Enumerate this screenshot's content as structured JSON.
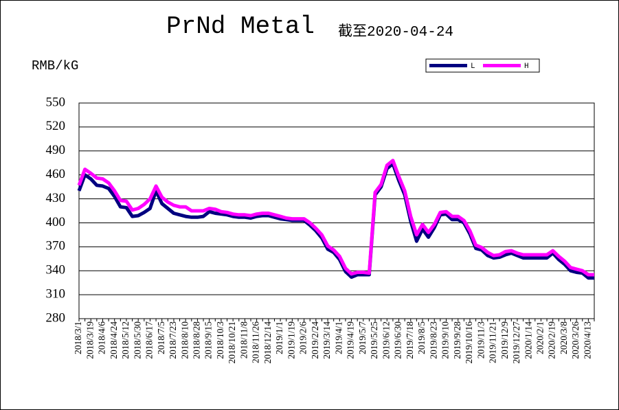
{
  "chart_data": {
    "type": "line",
    "title": "PrNd Metal",
    "subtitle": "截至2020-04-24",
    "y_label": "RMB/kG",
    "categories": [
      "2018/3/1",
      null,
      "2018/3/19",
      null,
      "2018/4/6",
      null,
      "2018/4/24",
      null,
      "2018/5/12",
      null,
      "2018/5/30",
      null,
      "2018/6/17",
      null,
      "2018/7/5",
      null,
      "2018/7/23",
      null,
      "2018/8/10",
      null,
      "2018/8/28",
      null,
      "2018/9/15",
      null,
      "2018/10/3",
      null,
      "2018/10/21",
      null,
      "2018/11/8",
      null,
      "2018/11/26",
      null,
      "2018/12/14",
      null,
      "2019/1/1",
      null,
      "2019/1/19",
      null,
      "2019/2/6",
      null,
      "2019/2/24",
      null,
      "2019/3/14",
      null,
      "2019/4/1",
      null,
      "2019/4/19",
      null,
      "2019/5/7",
      null,
      "2019/5/25",
      null,
      "2019/6/12",
      null,
      "2019/6/30",
      null,
      "2019/7/18",
      null,
      "2019/8/5",
      null,
      "2019/8/23",
      null,
      "2019/9/10",
      null,
      "2019/9/28",
      null,
      "2019/10/16",
      null,
      "2019/11/3",
      null,
      "2019/11/21",
      null,
      "2019/12/9",
      null,
      "2019/12/27",
      null,
      "2020/1/14",
      null,
      "2020/2/1",
      null,
      "2020/2/19",
      null,
      "2020/3/8",
      null,
      "2020/3/26",
      null,
      "2020/4/13",
      null
    ],
    "series": [
      {
        "name": "L",
        "color": "#000080",
        "values": [
          440,
          460,
          455,
          447,
          446,
          443,
          433,
          420,
          419,
          408,
          409,
          413,
          418,
          440,
          424,
          418,
          412,
          410,
          408,
          407,
          407,
          408,
          414,
          412,
          411,
          410,
          408,
          407,
          407,
          406,
          408,
          409,
          409,
          407,
          405,
          404,
          403,
          403,
          403,
          397,
          390,
          381,
          367,
          363,
          354,
          339,
          332,
          335,
          335,
          335,
          435,
          445,
          468,
          474,
          453,
          435,
          402,
          377,
          392,
          382,
          394,
          410,
          411,
          404,
          404,
          400,
          386,
          368,
          366,
          359,
          356,
          357,
          360,
          362,
          359,
          356,
          356,
          356,
          356,
          356,
          362,
          354,
          348,
          340,
          338,
          337,
          331,
          331
        ]
      },
      {
        "name": "H",
        "color": "#ff00ff",
        "values": [
          447,
          467,
          462,
          456,
          455,
          450,
          440,
          428,
          427,
          416,
          418,
          423,
          430,
          446,
          432,
          426,
          422,
          420,
          420,
          415,
          415,
          415,
          418,
          417,
          414,
          413,
          411,
          410,
          410,
          409,
          411,
          412,
          412,
          410,
          408,
          406,
          405,
          405,
          405,
          400,
          393,
          385,
          371,
          366,
          358,
          343,
          336,
          338,
          338,
          337,
          438,
          448,
          472,
          478,
          458,
          440,
          408,
          385,
          398,
          388,
          398,
          413,
          414,
          408,
          408,
          403,
          390,
          372,
          369,
          363,
          359,
          360,
          364,
          365,
          362,
          360,
          360,
          360,
          360,
          360,
          365,
          358,
          352,
          344,
          342,
          340,
          335,
          335
        ]
      }
    ],
    "ylim": [
      280,
      550
    ],
    "yticks": [
      280,
      310,
      340,
      370,
      400,
      430,
      460,
      490,
      520,
      550
    ],
    "grid": true,
    "legend": "top-right"
  }
}
